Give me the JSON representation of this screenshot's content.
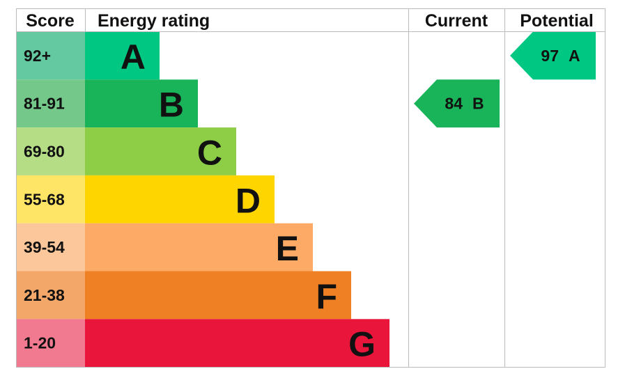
{
  "header": {
    "score": "Score",
    "rating": "Energy rating",
    "current": "Current",
    "potential": "Potential"
  },
  "rows": [
    {
      "score": "92+",
      "letter": "A",
      "band_color": "#64c9a0",
      "color": "#00c781"
    },
    {
      "score": "81-91",
      "letter": "B",
      "band_color": "#74c98a",
      "color": "#19b459"
    },
    {
      "score": "69-80",
      "letter": "C",
      "band_color": "#b5dd85",
      "color": "#8dce46"
    },
    {
      "score": "55-68",
      "letter": "D",
      "band_color": "#ffe566",
      "color": "#ffd500"
    },
    {
      "score": "39-54",
      "letter": "E",
      "band_color": "#fcc79a",
      "color": "#fcaa65"
    },
    {
      "score": "21-38",
      "letter": "F",
      "band_color": "#f3a86a",
      "color": "#ef8023"
    },
    {
      "score": "1-20",
      "letter": "G",
      "band_color": "#f27a90",
      "color": "#e9153b"
    }
  ],
  "current": {
    "value": 84,
    "letter": "B"
  },
  "potential": {
    "value": 97,
    "letter": "A"
  }
}
